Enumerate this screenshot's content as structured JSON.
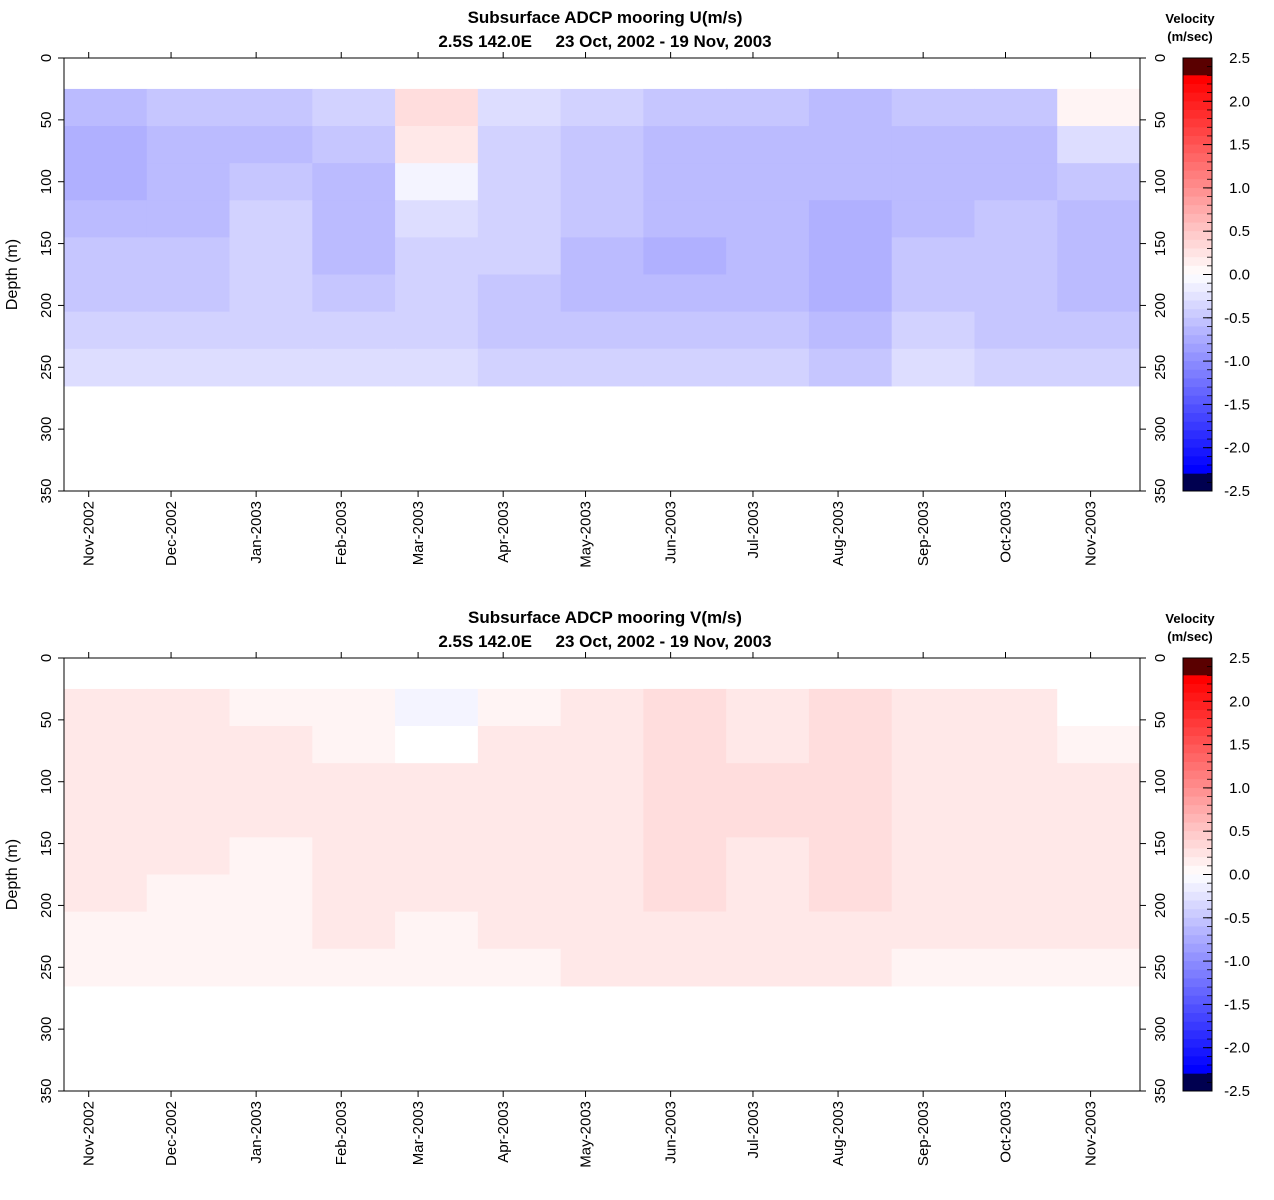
{
  "colorbar": {
    "title_line1": "Velocity",
    "title_line2": "(m/sec)",
    "ticks": [
      "2.5",
      "2.0",
      "1.5",
      "1.0",
      "0.5",
      "0.0",
      "-0.5",
      "-1.0",
      "-1.5",
      "-2.0",
      "-2.5"
    ],
    "range": [
      -2.5,
      2.5
    ],
    "colors": {
      "max": "#5a0000",
      "positive": "#ff0000",
      "zero": "#ffffff",
      "negative": "#0000ff",
      "min": "#000050"
    }
  },
  "chart_data": [
    {
      "type": "heatmap",
      "variable": "U",
      "title": "Subsurface ADCP mooring U(m/s)",
      "subtitle": "2.5S 142.0E     23 Oct, 2002 - 19 Nov, 2003",
      "ylabel": "Depth (m)",
      "ylim": [
        0,
        350
      ],
      "yticks": [
        "0",
        "50",
        "100",
        "150",
        "200",
        "250",
        "300",
        "350"
      ],
      "xlim": [
        "2002-10-23",
        "2003-11-19"
      ],
      "xticks": [
        "Nov-2002",
        "Dec-2002",
        "Jan-2003",
        "Feb-2003",
        "Mar-2003",
        "Apr-2003",
        "May-2003",
        "Jun-2003",
        "Jul-2003",
        "Aug-2003",
        "Sep-2003",
        "Oct-2003",
        "Nov-2003"
      ],
      "depth_range_m": [
        25,
        265
      ],
      "values": {
        "depths_m": [
          40,
          70,
          100,
          130,
          160,
          190,
          220,
          250
        ],
        "months": [
          "Nov-2002",
          "Dec-2002",
          "Jan-2003",
          "Feb-2003",
          "Mar-2003",
          "Apr-2003",
          "May-2003",
          "Jun-2003",
          "Jul-2003",
          "Aug-2003",
          "Sep-2003",
          "Oct-2003",
          "Nov-2003"
        ],
        "rows": [
          [
            -0.6,
            -0.5,
            -0.5,
            -0.4,
            0.3,
            -0.3,
            -0.4,
            -0.5,
            -0.5,
            -0.6,
            -0.5,
            -0.5,
            0.1
          ],
          [
            -0.7,
            -0.6,
            -0.6,
            -0.5,
            0.2,
            -0.4,
            -0.5,
            -0.6,
            -0.6,
            -0.6,
            -0.6,
            -0.6,
            -0.3
          ],
          [
            -0.7,
            -0.6,
            -0.5,
            -0.6,
            -0.1,
            -0.4,
            -0.5,
            -0.6,
            -0.6,
            -0.6,
            -0.6,
            -0.6,
            -0.5
          ],
          [
            -0.6,
            -0.6,
            -0.4,
            -0.6,
            -0.3,
            -0.4,
            -0.5,
            -0.6,
            -0.6,
            -0.7,
            -0.6,
            -0.5,
            -0.6
          ],
          [
            -0.5,
            -0.5,
            -0.4,
            -0.6,
            -0.4,
            -0.4,
            -0.6,
            -0.7,
            -0.6,
            -0.7,
            -0.5,
            -0.5,
            -0.6
          ],
          [
            -0.5,
            -0.5,
            -0.4,
            -0.5,
            -0.4,
            -0.5,
            -0.6,
            -0.6,
            -0.6,
            -0.7,
            -0.5,
            -0.5,
            -0.6
          ],
          [
            -0.4,
            -0.4,
            -0.4,
            -0.4,
            -0.4,
            -0.5,
            -0.5,
            -0.5,
            -0.5,
            -0.6,
            -0.4,
            -0.5,
            -0.5
          ],
          [
            -0.3,
            -0.3,
            -0.3,
            -0.3,
            -0.3,
            -0.4,
            -0.4,
            -0.4,
            -0.4,
            -0.5,
            -0.3,
            -0.4,
            -0.4
          ]
        ]
      }
    },
    {
      "type": "heatmap",
      "variable": "V",
      "title": "Subsurface ADCP mooring V(m/s)",
      "subtitle": "2.5S 142.0E     23 Oct, 2002 - 19 Nov, 2003",
      "ylabel": "Depth (m)",
      "ylim": [
        0,
        350
      ],
      "yticks": [
        "0",
        "50",
        "100",
        "150",
        "200",
        "250",
        "300",
        "350"
      ],
      "xlim": [
        "2002-10-23",
        "2003-11-19"
      ],
      "xticks": [
        "Nov-2002",
        "Dec-2002",
        "Jan-2003",
        "Feb-2003",
        "Mar-2003",
        "Apr-2003",
        "May-2003",
        "Jun-2003",
        "Jul-2003",
        "Aug-2003",
        "Sep-2003",
        "Oct-2003",
        "Nov-2003"
      ],
      "depth_range_m": [
        25,
        265
      ],
      "values": {
        "depths_m": [
          40,
          70,
          100,
          130,
          160,
          190,
          220,
          250
        ],
        "months": [
          "Nov-2002",
          "Dec-2002",
          "Jan-2003",
          "Feb-2003",
          "Mar-2003",
          "Apr-2003",
          "May-2003",
          "Jun-2003",
          "Jul-2003",
          "Aug-2003",
          "Sep-2003",
          "Oct-2003",
          "Nov-2003"
        ],
        "rows": [
          [
            0.2,
            0.2,
            0.1,
            0.1,
            -0.1,
            0.1,
            0.2,
            0.3,
            0.2,
            0.3,
            0.2,
            0.2,
            0.0
          ],
          [
            0.2,
            0.2,
            0.2,
            0.1,
            0.0,
            0.2,
            0.2,
            0.3,
            0.2,
            0.3,
            0.2,
            0.2,
            0.1
          ],
          [
            0.2,
            0.2,
            0.2,
            0.2,
            0.2,
            0.2,
            0.2,
            0.3,
            0.3,
            0.3,
            0.2,
            0.2,
            0.2
          ],
          [
            0.2,
            0.2,
            0.2,
            0.2,
            0.2,
            0.2,
            0.2,
            0.3,
            0.3,
            0.3,
            0.2,
            0.2,
            0.2
          ],
          [
            0.2,
            0.2,
            0.1,
            0.2,
            0.2,
            0.2,
            0.2,
            0.3,
            0.2,
            0.3,
            0.2,
            0.2,
            0.2
          ],
          [
            0.2,
            0.1,
            0.1,
            0.2,
            0.2,
            0.2,
            0.2,
            0.3,
            0.2,
            0.3,
            0.2,
            0.2,
            0.2
          ],
          [
            0.1,
            0.1,
            0.1,
            0.2,
            0.1,
            0.2,
            0.2,
            0.2,
            0.2,
            0.2,
            0.2,
            0.2,
            0.2
          ],
          [
            0.1,
            0.1,
            0.1,
            0.1,
            0.1,
            0.1,
            0.2,
            0.2,
            0.2,
            0.2,
            0.1,
            0.1,
            0.1
          ]
        ]
      }
    }
  ]
}
